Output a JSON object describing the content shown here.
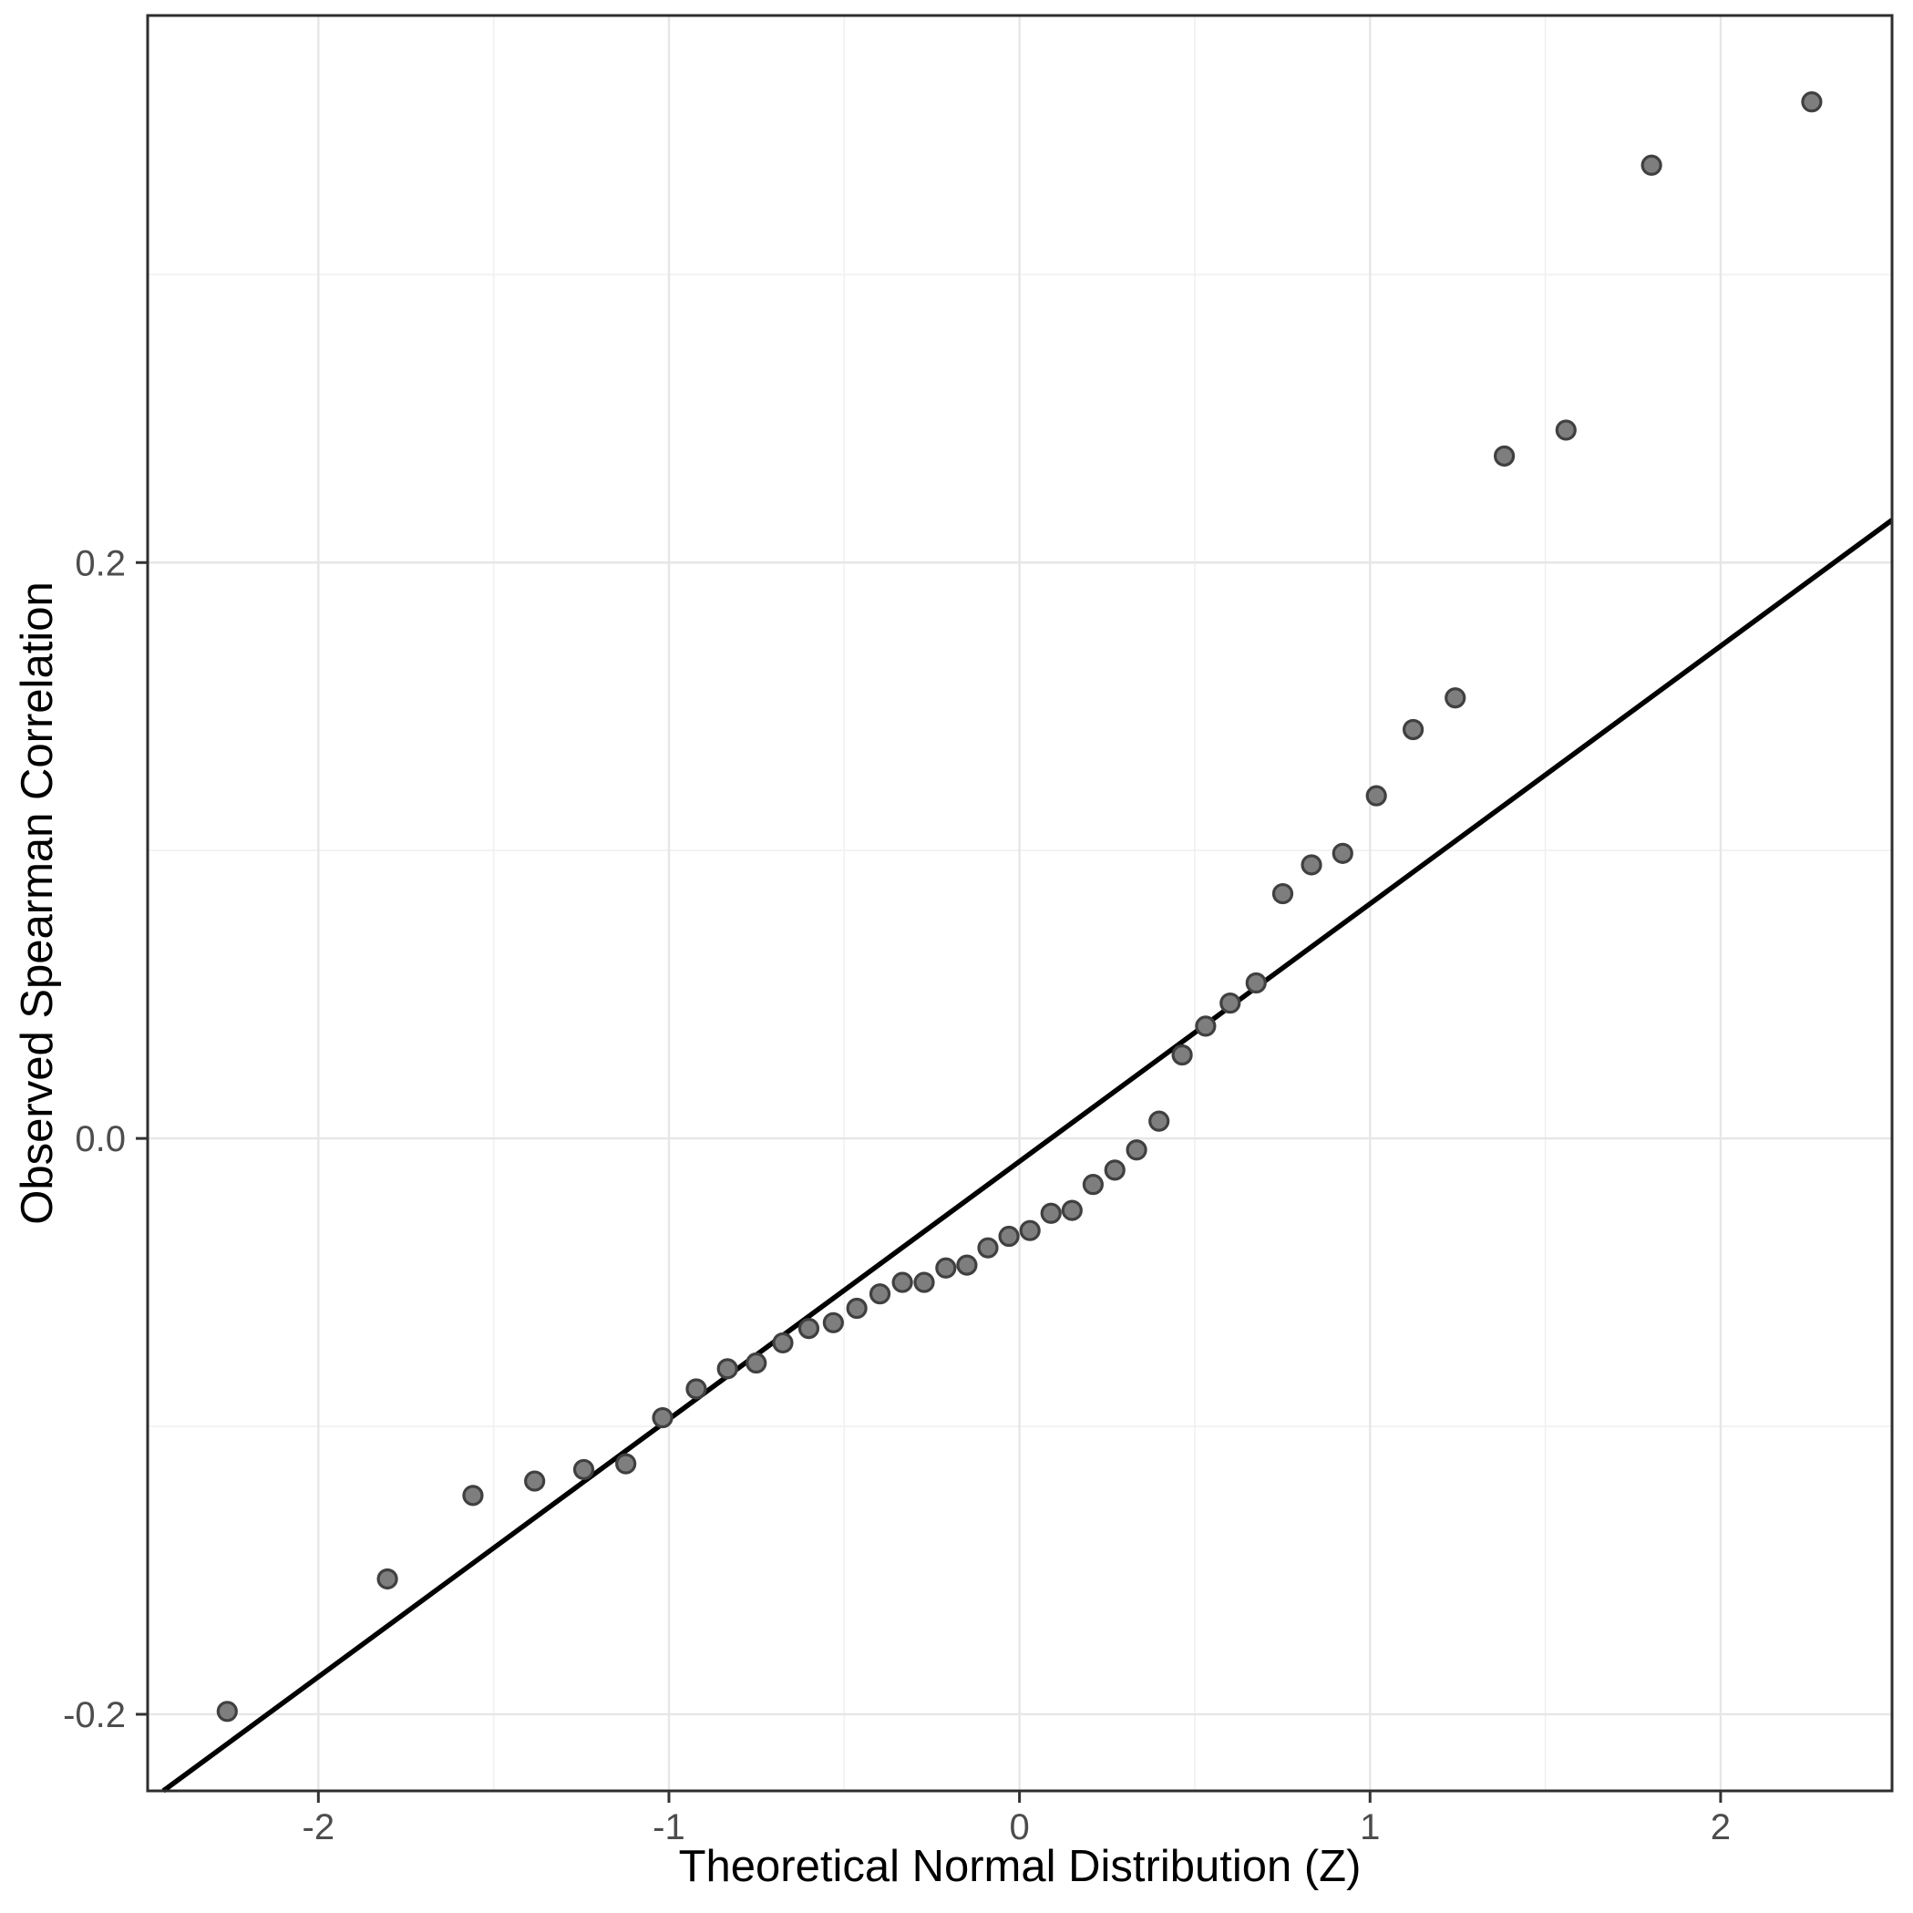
{
  "page": {
    "background": "#FFFFFF"
  },
  "chart_data": {
    "type": "scatter",
    "subtype": "qq-plot",
    "title": "",
    "xlabel": "Theoretical Normal Distribution (Z)",
    "ylabel": "Observed Spearman Correlation",
    "x": [
      -2.26,
      -1.803,
      -1.559,
      -1.383,
      -1.243,
      -1.123,
      -1.018,
      -0.922,
      -0.833,
      -0.751,
      -0.675,
      -0.601,
      -0.531,
      -0.464,
      -0.398,
      -0.334,
      -0.272,
      -0.21,
      -0.15,
      -0.09,
      -0.03,
      0.03,
      0.09,
      0.15,
      0.21,
      0.272,
      0.334,
      0.398,
      0.464,
      0.531,
      0.601,
      0.675,
      0.751,
      0.833,
      0.922,
      1.018,
      1.123,
      1.243,
      1.383,
      1.559,
      1.803,
      2.26
    ],
    "y": [
      -0.199,
      -0.153,
      -0.124,
      -0.119,
      -0.115,
      -0.113,
      -0.097,
      -0.087,
      -0.08,
      -0.078,
      -0.071,
      -0.066,
      -0.064,
      -0.059,
      -0.054,
      -0.05,
      -0.05,
      -0.045,
      -0.044,
      -0.038,
      -0.034,
      -0.032,
      -0.026,
      -0.025,
      -0.016,
      -0.011,
      -0.004,
      0.006,
      0.029,
      0.039,
      0.047,
      0.054,
      0.085,
      0.095,
      0.099,
      0.119,
      0.142,
      0.153,
      0.237,
      0.246,
      0.338,
      0.36
    ],
    "reference_line": {
      "slope": 0.0895,
      "intercept": -0.008
    },
    "xlim": [
      -2.487,
      2.489
    ],
    "ylim": [
      -0.2266,
      0.39
    ],
    "x_ticks": {
      "values": [
        -2,
        -1,
        0,
        1,
        2
      ],
      "labels": [
        "-2",
        "-1",
        "0",
        "1",
        "2"
      ],
      "minor": [
        -1.5,
        -0.5,
        0.5,
        1.5
      ]
    },
    "y_ticks": {
      "values": [
        -0.2,
        0.0,
        0.2
      ],
      "labels": [
        "-0.2",
        "0.0",
        "0.2"
      ],
      "minor": [
        -0.1,
        0.1,
        0.3
      ]
    },
    "grid": {
      "major": true,
      "minor": true
    },
    "legend": "none",
    "style": {
      "point_fill": "#7E7E7E",
      "point_stroke": "#404040",
      "line_color": "#000000",
      "grid_major_color": "#E6E6E6",
      "grid_minor_color": "#F0F0F0",
      "panel_border_color": "#2E2E2E",
      "tick_color": "#333333",
      "tick_label_color": "#4D4D4D",
      "axis_title_color": "#000000",
      "panel_background": "#FFFFFF"
    }
  }
}
